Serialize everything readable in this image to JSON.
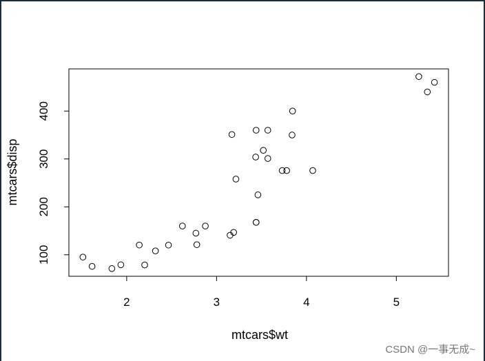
{
  "chart_data": {
    "type": "scatter",
    "xlabel": "mtcars$wt",
    "ylabel": "mtcars$disp",
    "x": [
      2.62,
      2.875,
      2.32,
      3.215,
      3.44,
      3.46,
      3.57,
      3.19,
      3.15,
      3.44,
      3.44,
      4.07,
      3.73,
      3.78,
      5.25,
      5.424,
      5.345,
      2.2,
      1.615,
      1.835,
      2.465,
      3.52,
      3.435,
      3.84,
      3.845,
      1.935,
      2.14,
      1.513,
      3.17,
      2.77,
      3.57,
      2.78
    ],
    "values": [
      160,
      160,
      108,
      258,
      360,
      225,
      360,
      146.7,
      140.8,
      167.6,
      167.6,
      275.8,
      275.8,
      275.8,
      472,
      460,
      440,
      78.7,
      75.7,
      71.1,
      120.1,
      318,
      304,
      350,
      400,
      79,
      120.3,
      95.1,
      351,
      145,
      301,
      121
    ],
    "xlim": [
      1.357,
      5.58
    ],
    "ylim": [
      55.06,
      488.04
    ],
    "xticks": [
      2,
      3,
      4,
      5
    ],
    "yticks": [
      100,
      200,
      300,
      400
    ],
    "color": "#000000"
  },
  "watermark": "CSDN @一事无成~"
}
